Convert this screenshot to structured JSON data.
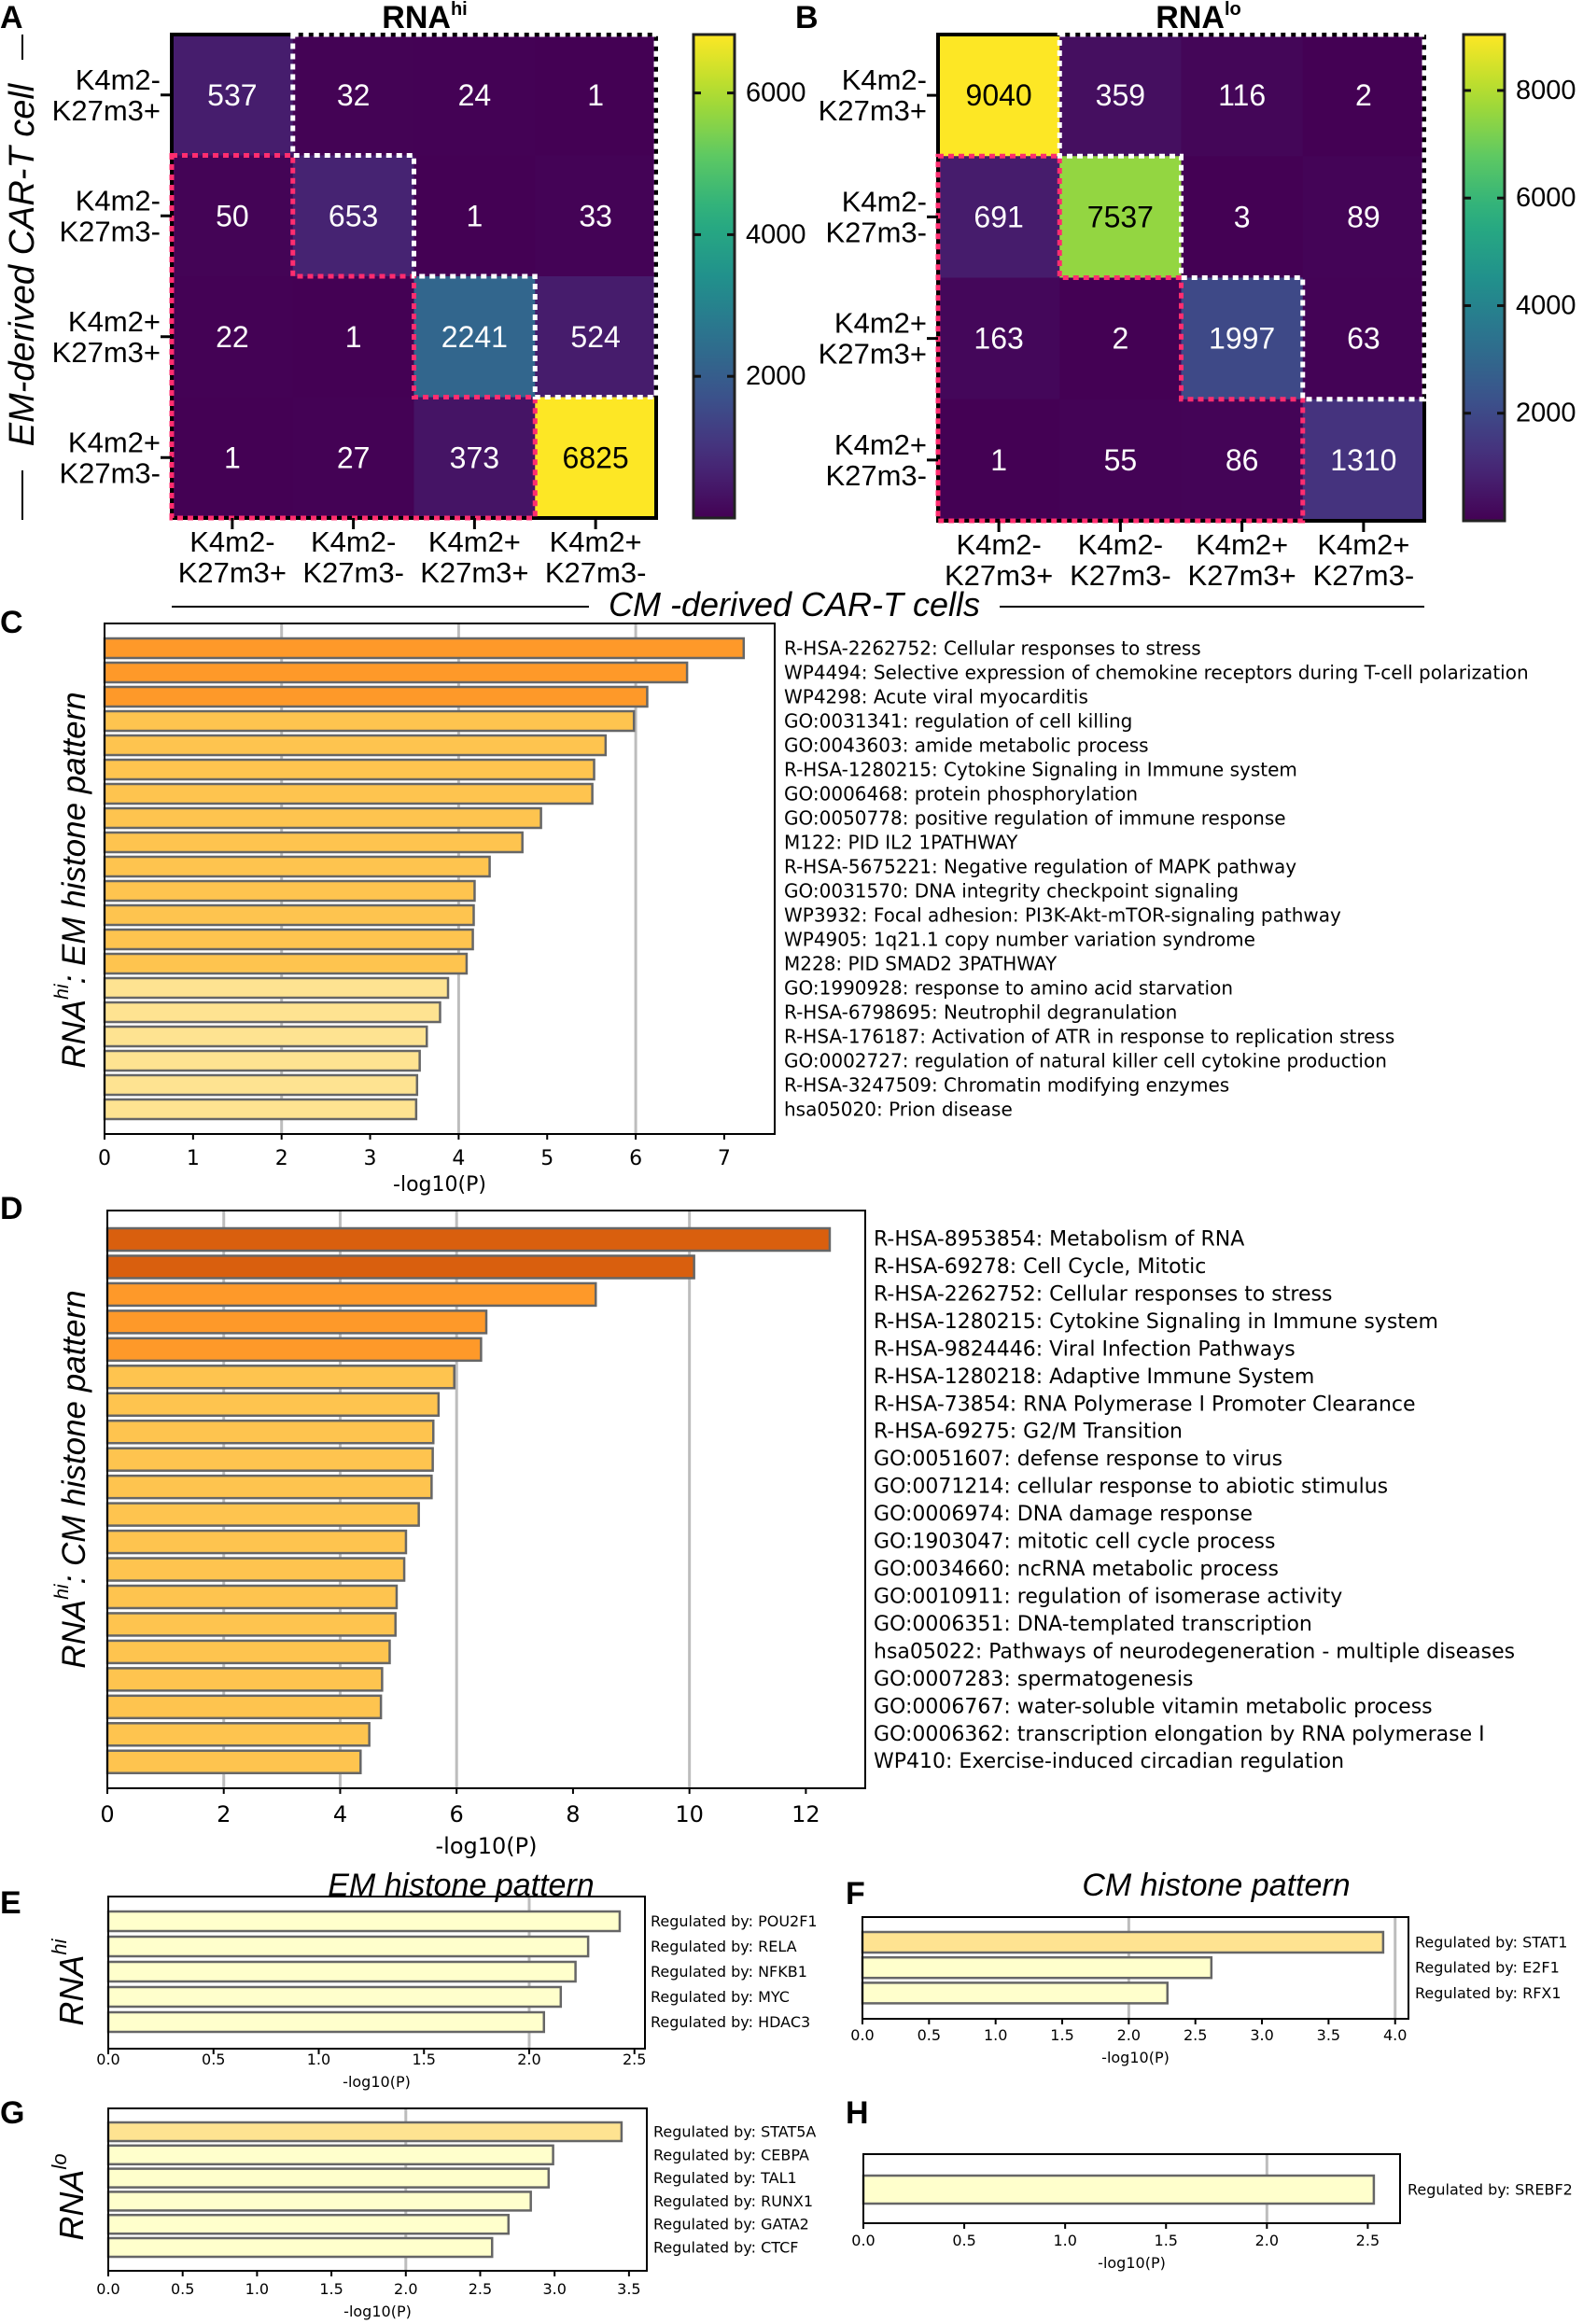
{
  "shared_axis_labels": {
    "row_axis": "EM-derived CAR-T cell",
    "col_axis": "CM -derived CAR-T cells"
  },
  "chart_data": [
    {
      "panel": "A",
      "type": "heatmap",
      "title": "RNA",
      "title_superscript": "hi",
      "row_labels": [
        [
          "K4m2-",
          "K27m3+"
        ],
        [
          "K4m2-",
          "K27m3-"
        ],
        [
          "K4m2+",
          "K27m3+"
        ],
        [
          "K4m2+",
          "K27m3-"
        ]
      ],
      "col_labels": [
        [
          "K4m2-",
          "K27m3+"
        ],
        [
          "K4m2-",
          "K27m3-"
        ],
        [
          "K4m2+",
          "K27m3+"
        ],
        [
          "K4m2+",
          "K27m3-"
        ]
      ],
      "values": [
        [
          537,
          32,
          24,
          1
        ],
        [
          50,
          653,
          1,
          33
        ],
        [
          22,
          1,
          2241,
          524
        ],
        [
          1,
          27,
          373,
          6825
        ]
      ],
      "colormap": "viridis",
      "colorbar": {
        "range": [
          0,
          6825
        ],
        "tick_labels": [
          "2000",
          "4000",
          "6000"
        ]
      },
      "outline_colors": {
        "upper": "#ffffff",
        "lower": "#ff2d6f"
      }
    },
    {
      "panel": "B",
      "type": "heatmap",
      "title": "RNA",
      "title_superscript": "lo",
      "row_labels": [
        [
          "K4m2-",
          "K27m3+"
        ],
        [
          "K4m2-",
          "K27m3-"
        ],
        [
          "K4m2+",
          "K27m3+"
        ],
        [
          "K4m2+",
          "K27m3-"
        ]
      ],
      "col_labels": [
        [
          "K4m2-",
          "K27m3+"
        ],
        [
          "K4m2-",
          "K27m3-"
        ],
        [
          "K4m2+",
          "K27m3+"
        ],
        [
          "K4m2+",
          "K27m3-"
        ]
      ],
      "values": [
        [
          9040,
          359,
          116,
          2
        ],
        [
          691,
          7537,
          3,
          89
        ],
        [
          163,
          2,
          1997,
          63
        ],
        [
          1,
          55,
          86,
          1310
        ]
      ],
      "colormap": "viridis",
      "colorbar": {
        "range": [
          0,
          9040
        ],
        "tick_labels": [
          "2000",
          "4000",
          "6000",
          "8000"
        ]
      },
      "outline_colors": {
        "upper": "#ffffff",
        "lower": "#ff2d6f"
      }
    },
    {
      "panel": "C",
      "type": "bar",
      "orientation": "horizontal",
      "ylabel": [
        "RNA",
        "hi",
        ": EM histone pattern"
      ],
      "xlabel": "-log10(P)",
      "xlim": [
        0,
        7.57
      ],
      "xtick_labels": [
        "0",
        "1",
        "2",
        "3",
        "4",
        "5",
        "6",
        "7"
      ],
      "gridlines": [
        2,
        4,
        6
      ],
      "categories": [
        "R-HSA-2262752: Cellular responses to stress",
        "WP4494: Selective expression of chemokine receptors during T-cell polarization",
        "WP4298: Acute viral myocarditis",
        "GO:0031341: regulation of cell killing",
        "GO:0043603: amide metabolic process",
        "R-HSA-1280215: Cytokine Signaling in Immune system",
        "GO:0006468: protein phosphorylation",
        "GO:0050778: positive regulation of immune response",
        "M122: PID IL2 1PATHWAY",
        "R-HSA-5675221: Negative regulation of MAPK pathway",
        "GO:0031570: DNA integrity checkpoint signaling",
        "WP3932: Focal adhesion: PI3K-Akt-mTOR-signaling pathway",
        "WP4905: 1q21.1 copy number variation syndrome",
        "M228: PID SMAD2 3PATHWAY",
        "GO:1990928: response to amino acid starvation",
        "R-HSA-6798695: Neutrophil degranulation",
        "R-HSA-176187: Activation of ATR in response to replication stress",
        "GO:0002727: regulation of natural killer cell cytokine production",
        "R-HSA-3247509: Chromatin modifying enzymes",
        "hsa05020: Prion disease"
      ],
      "values": [
        7.22,
        6.58,
        6.13,
        5.98,
        5.66,
        5.53,
        5.51,
        4.93,
        4.72,
        4.35,
        4.18,
        4.17,
        4.16,
        4.09,
        3.88,
        3.79,
        3.64,
        3.56,
        3.53,
        3.52
      ],
      "colors": [
        "#FE9929",
        "#FE9929",
        "#FE9929",
        "#FEC44F",
        "#FEC44F",
        "#FEC44F",
        "#FEC44F",
        "#FEC44F",
        "#FEC44F",
        "#FEC44F",
        "#FEC44F",
        "#FEC44F",
        "#FEC44F",
        "#FEC44F",
        "#FEE391",
        "#FEE391",
        "#FEE391",
        "#FEE391",
        "#FEE391",
        "#FEE391"
      ]
    },
    {
      "panel": "D",
      "type": "bar",
      "orientation": "horizontal",
      "ylabel": [
        "RNA",
        "hi",
        ": CM histone pattern"
      ],
      "xlabel": "-log10(P)",
      "xlim": [
        0,
        13.02
      ],
      "xtick_labels": [
        "0",
        "2",
        "4",
        "6",
        "8",
        "10",
        "12"
      ],
      "gridlines": [
        2,
        4,
        6,
        10
      ],
      "categories": [
        "R-HSA-8953854: Metabolism of RNA",
        "R-HSA-69278: Cell Cycle, Mitotic",
        "R-HSA-2262752: Cellular responses to stress",
        "R-HSA-1280215: Cytokine Signaling in Immune system",
        "R-HSA-9824446: Viral Infection Pathways",
        "R-HSA-1280218: Adaptive Immune System",
        "R-HSA-73854: RNA Polymerase I Promoter Clearance",
        "R-HSA-69275: G2/M Transition",
        "GO:0051607: defense response to virus",
        "GO:0071214: cellular response to abiotic stimulus",
        "GO:0006974: DNA damage response",
        "GO:1903047: mitotic cell cycle process",
        "GO:0034660: ncRNA metabolic process",
        "GO:0010911: regulation of isomerase activity",
        "GO:0006351: DNA-templated transcription",
        "hsa05022: Pathways of neurodegeneration - multiple diseases",
        "GO:0007283: spermatogenesis",
        "GO:0006767: water-soluble vitamin metabolic process",
        "GO:0006362: transcription elongation by RNA polymerase I",
        "WP410: Exercise-induced circadian regulation"
      ],
      "values": [
        12.41,
        10.08,
        8.39,
        6.51,
        6.42,
        5.96,
        5.69,
        5.6,
        5.59,
        5.57,
        5.35,
        5.13,
        5.1,
        4.97,
        4.95,
        4.85,
        4.72,
        4.7,
        4.5,
        4.35
      ],
      "colors": [
        "#D95F0E",
        "#D95F0E",
        "#FE9929",
        "#FE9929",
        "#FE9929",
        "#FEC44F",
        "#FEC44F",
        "#FEC44F",
        "#FEC44F",
        "#FEC44F",
        "#FEC44F",
        "#FEC44F",
        "#FEC44F",
        "#FEC44F",
        "#FEC44F",
        "#FEC44F",
        "#FEC44F",
        "#FEC44F",
        "#FEC44F",
        "#FEC44F"
      ]
    },
    {
      "panel": "E",
      "type": "bar",
      "orientation": "horizontal",
      "title": "EM histone pattern",
      "ylabel": [
        "RNA",
        "hi",
        ""
      ],
      "xlabel": "-log10(P)",
      "xlim": [
        0,
        2.55
      ],
      "xtick_labels": [
        "0.0",
        "0.5",
        "1.0",
        "1.5",
        "2.0",
        "2.5"
      ],
      "gridlines": [
        2
      ],
      "categories": [
        "Regulated by: POU2F1",
        "Regulated by: RELA",
        "Regulated by: NFKB1",
        "Regulated by: MYC",
        "Regulated by: HDAC3"
      ],
      "values": [
        2.43,
        2.28,
        2.22,
        2.15,
        2.07
      ],
      "colors": [
        "#FFFFCC",
        "#FFFFCC",
        "#FFFFCC",
        "#FFFFCC",
        "#FFFFCC"
      ]
    },
    {
      "panel": "F",
      "type": "bar",
      "orientation": "horizontal",
      "title": "CM histone pattern",
      "xlabel": "-log10(P)",
      "xlim": [
        0,
        4.1
      ],
      "xtick_labels": [
        "0.0",
        "0.5",
        "1.0",
        "1.5",
        "2.0",
        "2.5",
        "3.0",
        "3.5",
        "4.0"
      ],
      "gridlines": [
        2,
        4
      ],
      "categories": [
        "Regulated by: STAT1",
        "Regulated by: E2F1",
        "Regulated by: RFX1"
      ],
      "values": [
        3.91,
        2.62,
        2.29
      ],
      "colors": [
        "#FEE391",
        "#FFFFCC",
        "#FFFFCC"
      ]
    },
    {
      "panel": "G",
      "type": "bar",
      "orientation": "horizontal",
      "ylabel": [
        "RNA",
        "lo",
        ""
      ],
      "xlabel": "-log10(P)",
      "xlim": [
        0,
        3.62
      ],
      "xtick_labels": [
        "0.0",
        "0.5",
        "1.0",
        "1.5",
        "2.0",
        "2.5",
        "3.0",
        "3.5"
      ],
      "gridlines": [
        2
      ],
      "categories": [
        "Regulated by: STAT5A",
        "Regulated by: CEBPA",
        "Regulated by: TAL1",
        "Regulated by: RUNX1",
        "Regulated by: GATA2",
        "Regulated by: CTCF"
      ],
      "values": [
        3.45,
        2.99,
        2.96,
        2.84,
        2.69,
        2.58
      ],
      "colors": [
        "#FEE391",
        "#FFFFCC",
        "#FFFFCC",
        "#FFFFCC",
        "#FFFFCC",
        "#FFFFCC"
      ]
    },
    {
      "panel": "H",
      "type": "bar",
      "orientation": "horizontal",
      "xlabel": "-log10(P)",
      "xlim": [
        0,
        2.66
      ],
      "xtick_labels": [
        "0.0",
        "0.5",
        "1.0",
        "1.5",
        "2.0",
        "2.5"
      ],
      "gridlines": [
        2
      ],
      "categories": [
        "Regulated by: SREBF2"
      ],
      "values": [
        2.53
      ],
      "colors": [
        "#FFFFCC"
      ]
    }
  ]
}
